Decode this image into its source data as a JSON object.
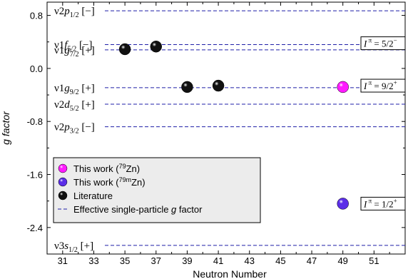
{
  "chart_data": {
    "type": "scatter",
    "xlabel": "Neutron Number",
    "ylabel": "g factor",
    "xlim": [
      30,
      53
    ],
    "ylim": [
      -2.8,
      1.0
    ],
    "xticks": [
      "31",
      "33",
      "35",
      "37",
      "39",
      "41",
      "43",
      "45",
      "47",
      "49",
      "51"
    ],
    "xtick_values": [
      31,
      33,
      35,
      37,
      39,
      41,
      43,
      45,
      47,
      49,
      51
    ],
    "yticks": [
      "0.8",
      "0.0",
      "-0.8",
      "-1.6",
      "-2.4"
    ],
    "ytick_values": [
      0.8,
      0.0,
      -0.8,
      -1.6,
      -2.4
    ],
    "series": [
      {
        "name": "This work (79Zn)",
        "legend_main": "This work (",
        "legend_sup": "79",
        "legend_tail": "Zn)",
        "color": "#ff1aff",
        "points": [
          {
            "x": 49,
            "y": -0.28
          }
        ]
      },
      {
        "name": "This work (79mZn)",
        "legend_main": "This work (",
        "legend_sup": "79m",
        "legend_tail": "Zn)",
        "color": "#5b2ee8",
        "points": [
          {
            "x": 49,
            "y": -2.04
          }
        ]
      },
      {
        "name": "Literature",
        "legend_main": "Literature",
        "legend_sup": "",
        "legend_tail": "",
        "color": "#111111",
        "points": [
          {
            "x": 35,
            "y": 0.29
          },
          {
            "x": 37,
            "y": 0.33
          },
          {
            "x": 39,
            "y": -0.28
          },
          {
            "x": 41,
            "y": -0.26
          }
        ]
      }
    ],
    "line_legend": {
      "pre": "Effective single-particle ",
      "italic": "g",
      "post": " factor",
      "color": "#1f1fa8"
    },
    "levels": [
      {
        "y": 0.87,
        "nu": "ν2",
        "orb": "p",
        "sub": "1/2",
        "parity": " [−]"
      },
      {
        "y": 0.36,
        "nu": "ν1",
        "orb": "f",
        "sub": "5/2",
        "parity": " [−]"
      },
      {
        "y": 0.28,
        "nu": "ν1",
        "orb": "g",
        "sub": "7/2",
        "parity": " [+]"
      },
      {
        "y": -0.29,
        "nu": "ν1",
        "orb": "g",
        "sub": "9/2",
        "parity": " [+]"
      },
      {
        "y": -0.54,
        "nu": "ν2",
        "orb": "d",
        "sub": "5/2",
        "parity": " [+]"
      },
      {
        "y": -0.88,
        "nu": "ν2",
        "orb": "p",
        "sub": "3/2",
        "parity": " [−]"
      },
      {
        "y": -2.67,
        "nu": "ν3",
        "orb": "s",
        "sub": "1/2",
        "parity": " [+]"
      }
    ],
    "spin_labels": [
      {
        "y": 0.38,
        "pre": "I",
        "sup": " π",
        "post": " = 5/2",
        "tail": "−"
      },
      {
        "y": -0.26,
        "pre": "I",
        "sup": " π",
        "post": " = 9/2",
        "tail": "+"
      },
      {
        "y": -2.04,
        "pre": "I",
        "sup": " π",
        "post": " = 1/2",
        "tail": "+"
      }
    ],
    "grid": false,
    "legend_position": "bottom-left"
  }
}
